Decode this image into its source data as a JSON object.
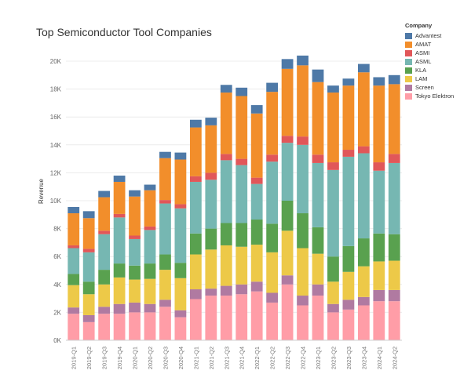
{
  "colors": {
    "Advantest": "#4e79a7",
    "AMAT": "#f28e2b",
    "ASMI": "#e15759",
    "ASML": "#76b7b2",
    "KLA": "#59a14f",
    "LAM": "#edc948",
    "Screen": "#b07aa1",
    "Tokyo Elektron": "#ff9da7"
  },
  "chart_data": {
    "type": "bar",
    "stacked": true,
    "title": "Top Semiconductor Tool Companies",
    "xlabel": "",
    "ylabel": "Revenue",
    "ylim": [
      0,
      20000
    ],
    "yticks": [
      0,
      2000,
      4000,
      6000,
      8000,
      10000,
      12000,
      14000,
      16000,
      18000,
      20000
    ],
    "ytick_labels": [
      "0K",
      "2K",
      "4K",
      "6K",
      "8K",
      "10K",
      "12K",
      "14K",
      "16K",
      "18K",
      "20K"
    ],
    "grid": true,
    "legend_title": "Company",
    "legend_position": "top-right",
    "categories": [
      "2019-Q1",
      "2019-Q2",
      "2019-Q3",
      "2019-Q4",
      "2020-Q1",
      "2020-Q2",
      "2020-Q3",
      "2020-Q4",
      "2021-Q1",
      "2021-Q2",
      "2021-Q3",
      "2021-Q4",
      "2022-Q1",
      "2022-Q2",
      "2022-Q3",
      "2022-Q4",
      "2023-Q1",
      "2023-Q2",
      "2023-Q3",
      "2023-Q4",
      "2024-Q1",
      "2024-Q2"
    ],
    "series": [
      {
        "name": "Tokyo Elektron",
        "values": [
          1900,
          1300,
          1900,
          1900,
          2000,
          2000,
          2400,
          1650,
          2950,
          3200,
          3200,
          3300,
          3500,
          2700,
          4000,
          2500,
          3200,
          2000,
          2200,
          2500,
          2800,
          2800
        ]
      },
      {
        "name": "Screen",
        "values": [
          450,
          500,
          500,
          700,
          700,
          600,
          500,
          500,
          700,
          500,
          700,
          700,
          700,
          700,
          650,
          700,
          800,
          600,
          700,
          600,
          800,
          800
        ]
      },
      {
        "name": "LAM",
        "values": [
          1600,
          1500,
          1600,
          1900,
          1650,
          1800,
          2150,
          2300,
          2500,
          2800,
          2900,
          2700,
          2650,
          2900,
          3200,
          3400,
          2200,
          1600,
          2000,
          2200,
          2050,
          2100
        ]
      },
      {
        "name": "KLA",
        "values": [
          800,
          900,
          1050,
          1000,
          1000,
          1100,
          1100,
          1100,
          1500,
          1500,
          1600,
          1700,
          1800,
          2050,
          2150,
          2500,
          1900,
          1800,
          1850,
          2000,
          2000,
          1900
        ]
      },
      {
        "name": "ASML",
        "values": [
          1850,
          2100,
          2550,
          3300,
          1900,
          2400,
          3650,
          3900,
          3700,
          3500,
          4500,
          4150,
          2550,
          4450,
          4150,
          4900,
          4600,
          6200,
          6400,
          6100,
          4500,
          5100
        ]
      },
      {
        "name": "ASMI",
        "values": [
          200,
          250,
          250,
          250,
          250,
          250,
          250,
          300,
          400,
          500,
          450,
          450,
          450,
          500,
          500,
          600,
          600,
          550,
          500,
          500,
          600,
          650
        ]
      },
      {
        "name": "AMAT",
        "values": [
          2300,
          2200,
          2400,
          2300,
          2800,
          2600,
          3000,
          3200,
          3500,
          3400,
          4400,
          4500,
          4600,
          4500,
          4800,
          5100,
          5200,
          5000,
          4600,
          5300,
          5500,
          5000
        ]
      },
      {
        "name": "Advantest",
        "values": [
          450,
          500,
          450,
          450,
          450,
          400,
          450,
          500,
          550,
          550,
          550,
          600,
          600,
          650,
          700,
          700,
          900,
          500,
          500,
          600,
          600,
          650
        ]
      }
    ]
  }
}
